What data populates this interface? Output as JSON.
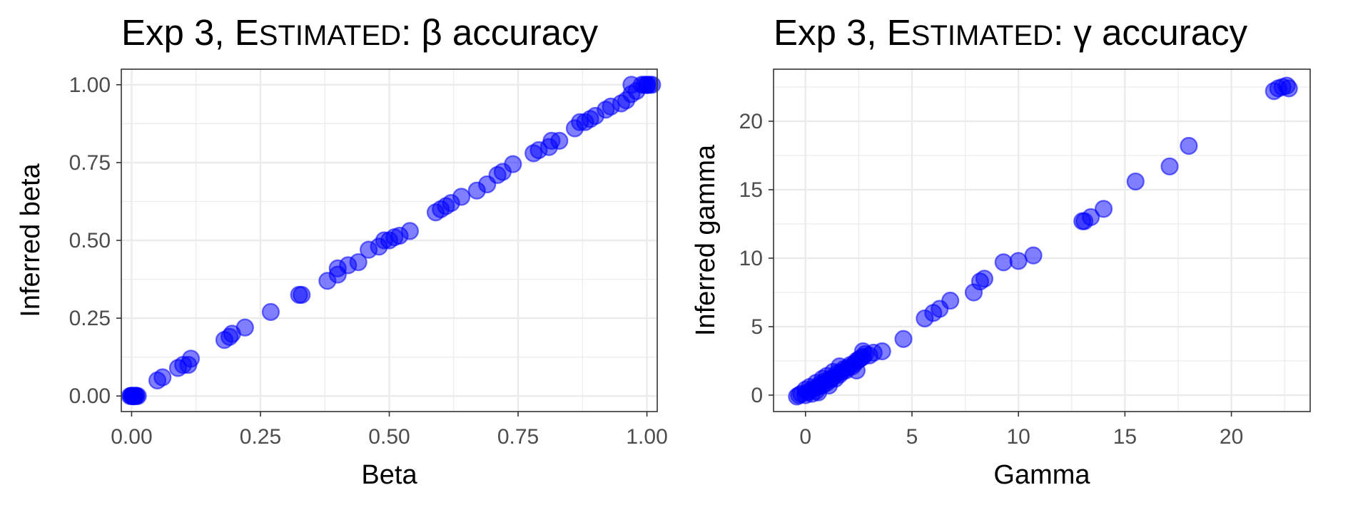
{
  "colors": {
    "point_fill": "#0000ff",
    "point_stroke": "#0000ff"
  },
  "chart_data": [
    {
      "type": "scatter",
      "title": {
        "pre": "Exp 3, ",
        "cap1": "E",
        "smallcaps": "STIMATED",
        "post": ": β accuracy"
      },
      "xlabel": "Beta",
      "ylabel": "Inferred beta",
      "xlim": [
        -0.02,
        1.02
      ],
      "ylim": [
        -0.05,
        1.05
      ],
      "xticks": [
        0,
        0.25,
        0.5,
        0.75,
        1
      ],
      "xtick_labels": [
        "0.00",
        "0.25",
        "0.50",
        "0.75",
        "1.00"
      ],
      "yticks": [
        0,
        0.25,
        0.5,
        0.75,
        1
      ],
      "ytick_labels": [
        "0.00",
        "0.25",
        "0.50",
        "0.75",
        "1.00"
      ],
      "grid": true,
      "points": [
        [
          0.0,
          0.0
        ],
        [
          0.003,
          0.0
        ],
        [
          0.006,
          0.0
        ],
        [
          0.009,
          0.0
        ],
        [
          0.012,
          0.0
        ],
        [
          -0.003,
          0.0
        ],
        [
          0.0,
          0.001
        ],
        [
          0.004,
          -0.001
        ],
        [
          0.008,
          0.001
        ],
        [
          0.002,
          0.0
        ],
        [
          0.05,
          0.05
        ],
        [
          0.06,
          0.06
        ],
        [
          0.09,
          0.09
        ],
        [
          0.1,
          0.1
        ],
        [
          0.11,
          0.1
        ],
        [
          0.115,
          0.12
        ],
        [
          0.18,
          0.18
        ],
        [
          0.19,
          0.19
        ],
        [
          0.195,
          0.2
        ],
        [
          0.22,
          0.22
        ],
        [
          0.27,
          0.27
        ],
        [
          0.325,
          0.325
        ],
        [
          0.33,
          0.325
        ],
        [
          0.38,
          0.37
        ],
        [
          0.4,
          0.39
        ],
        [
          0.4,
          0.41
        ],
        [
          0.42,
          0.42
        ],
        [
          0.44,
          0.43
        ],
        [
          0.46,
          0.47
        ],
        [
          0.48,
          0.48
        ],
        [
          0.49,
          0.5
        ],
        [
          0.5,
          0.5
        ],
        [
          0.51,
          0.51
        ],
        [
          0.52,
          0.515
        ],
        [
          0.54,
          0.53
        ],
        [
          0.59,
          0.59
        ],
        [
          0.6,
          0.6
        ],
        [
          0.61,
          0.61
        ],
        [
          0.62,
          0.62
        ],
        [
          0.64,
          0.64
        ],
        [
          0.67,
          0.66
        ],
        [
          0.69,
          0.68
        ],
        [
          0.71,
          0.71
        ],
        [
          0.72,
          0.72
        ],
        [
          0.74,
          0.745
        ],
        [
          0.78,
          0.78
        ],
        [
          0.79,
          0.79
        ],
        [
          0.81,
          0.8
        ],
        [
          0.815,
          0.82
        ],
        [
          0.83,
          0.82
        ],
        [
          0.86,
          0.86
        ],
        [
          0.87,
          0.88
        ],
        [
          0.88,
          0.88
        ],
        [
          0.89,
          0.89
        ],
        [
          0.9,
          0.9
        ],
        [
          0.92,
          0.92
        ],
        [
          0.93,
          0.93
        ],
        [
          0.95,
          0.94
        ],
        [
          0.96,
          0.95
        ],
        [
          0.97,
          0.97
        ],
        [
          0.98,
          0.98
        ],
        [
          0.97,
          1.0
        ],
        [
          0.99,
          1.0
        ],
        [
          1.0,
          1.0
        ],
        [
          1.005,
          1.0
        ],
        [
          1.01,
          1.0
        ],
        [
          0.995,
          1.0
        ],
        [
          1.0,
          0.999
        ]
      ]
    },
    {
      "type": "scatter",
      "title": {
        "pre": "Exp 3, ",
        "cap1": "E",
        "smallcaps": "STIMATED",
        "post": ": γ accuracy"
      },
      "xlabel": "Gamma",
      "ylabel": "Inferred gamma",
      "xlim": [
        -1.5,
        23.7
      ],
      "ylim": [
        -1.2,
        23.8
      ],
      "xticks": [
        0,
        5,
        10,
        15,
        20
      ],
      "xtick_labels": [
        "0",
        "5",
        "10",
        "15",
        "20"
      ],
      "yticks": [
        0,
        5,
        10,
        15,
        20
      ],
      "ytick_labels": [
        "0",
        "5",
        "10",
        "15",
        "20"
      ],
      "grid": true,
      "points": [
        [
          -0.4,
          -0.1
        ],
        [
          -0.3,
          0.0
        ],
        [
          -0.2,
          0.1
        ],
        [
          0.0,
          0.0
        ],
        [
          0.1,
          0.2
        ],
        [
          0.2,
          0.3
        ],
        [
          0.3,
          0.1
        ],
        [
          0.4,
          0.5
        ],
        [
          0.5,
          0.3
        ],
        [
          0.6,
          0.6
        ],
        [
          0.7,
          0.8
        ],
        [
          0.8,
          0.7
        ],
        [
          0.9,
          1.0
        ],
        [
          1.0,
          0.9
        ],
        [
          1.1,
          1.1
        ],
        [
          1.2,
          1.2
        ],
        [
          1.3,
          1.3
        ],
        [
          1.4,
          1.2
        ],
        [
          1.5,
          1.6
        ],
        [
          1.6,
          1.5
        ],
        [
          1.7,
          1.7
        ],
        [
          1.8,
          1.9
        ],
        [
          1.9,
          1.8
        ],
        [
          2.0,
          2.0
        ],
        [
          2.1,
          2.2
        ],
        [
          2.2,
          2.1
        ],
        [
          2.3,
          2.3
        ],
        [
          2.4,
          2.5
        ],
        [
          2.5,
          2.6
        ],
        [
          2.6,
          2.7
        ],
        [
          2.7,
          2.8
        ],
        [
          2.8,
          3.0
        ],
        [
          3.0,
          2.9
        ],
        [
          3.2,
          3.1
        ],
        [
          0.2,
          0.6
        ],
        [
          0.5,
          0.9
        ],
        [
          1.0,
          1.4
        ],
        [
          1.3,
          1.7
        ],
        [
          0.6,
          0.2
        ],
        [
          1.1,
          0.7
        ],
        [
          2.4,
          1.8
        ],
        [
          0.0,
          0.4
        ],
        [
          2.7,
          3.2
        ],
        [
          0.8,
          1.2
        ],
        [
          1.6,
          2.1
        ],
        [
          3.6,
          3.2
        ],
        [
          4.6,
          4.1
        ],
        [
          5.6,
          5.6
        ],
        [
          6.0,
          6.0
        ],
        [
          6.3,
          6.3
        ],
        [
          6.8,
          6.9
        ],
        [
          7.9,
          7.5
        ],
        [
          8.2,
          8.3
        ],
        [
          8.4,
          8.5
        ],
        [
          9.3,
          9.7
        ],
        [
          10.0,
          9.8
        ],
        [
          10.7,
          10.2
        ],
        [
          13.0,
          12.7
        ],
        [
          13.1,
          12.7
        ],
        [
          13.4,
          13.0
        ],
        [
          14.0,
          13.6
        ],
        [
          15.5,
          15.6
        ],
        [
          17.1,
          16.7
        ],
        [
          18.0,
          18.2
        ],
        [
          22.0,
          22.2
        ],
        [
          22.2,
          22.4
        ],
        [
          22.4,
          22.5
        ],
        [
          22.6,
          22.6
        ],
        [
          22.7,
          22.4
        ]
      ]
    }
  ]
}
